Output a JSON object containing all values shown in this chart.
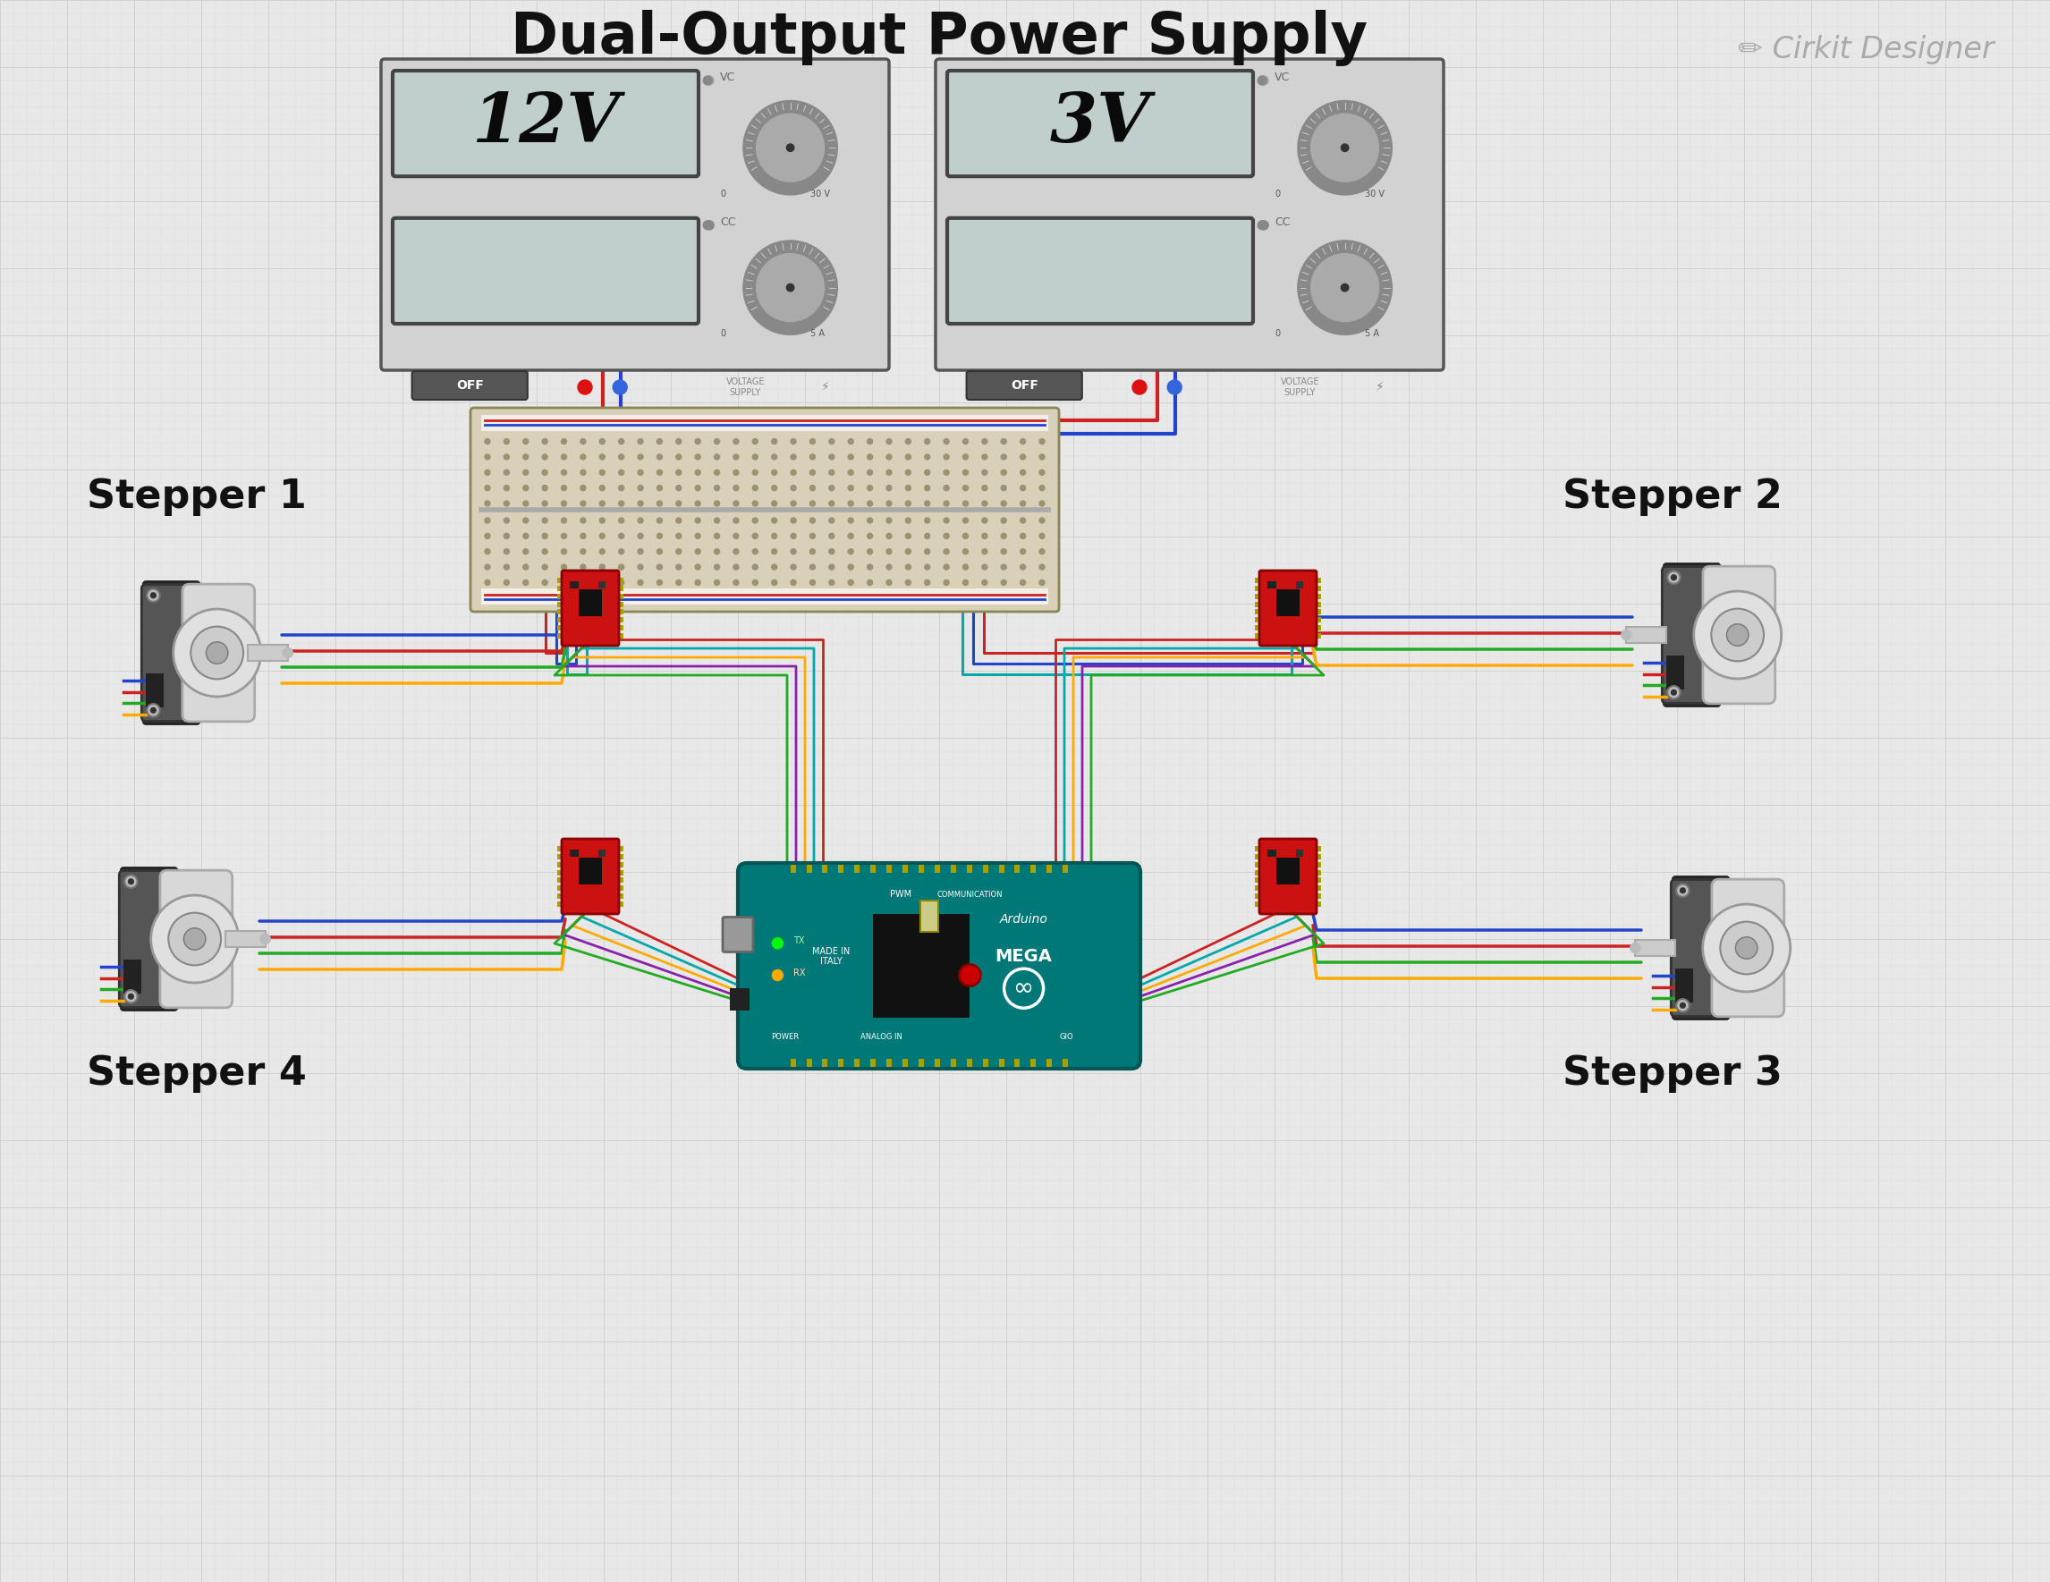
{
  "title": "Dual-Output Power Supply",
  "bg_color": "#e8e8e8",
  "grid_minor_color": "#d8d8d8",
  "grid_major_color": "#c8c8c8",
  "watermark": "Cirkit Designer",
  "watermark_color": "#aaaaaa",
  "stepper_labels": [
    "Stepper 1",
    "Stepper 2",
    "Stepper 3",
    "Stepper 4"
  ],
  "psu_bg": "#d2d2d2",
  "psu_border": "#555555",
  "display_bg": "#c0cece",
  "display_border": "#444444",
  "knob_outer": "#888888",
  "knob_inner": "#aaaaaa",
  "knob_tick": "#cccccc",
  "knob_dot": "#333333",
  "btn_color": "#555555",
  "led_red": "#dd1111",
  "led_blue": "#3366dd",
  "driver_red": "#cc1111",
  "driver_chip": "#111111",
  "breadboard_bg": "#c8c0a0",
  "breadboard_hole": "#aaa880",
  "breadboard_rail_red": "#cc2222",
  "breadboard_rail_blue": "#2222cc",
  "arduino_teal": "#007878",
  "arduino_dark": "#005555",
  "motor_front_light": "#cccccc",
  "motor_front_mid": "#aaaaaa",
  "motor_body_dark": "#444444",
  "motor_body_mid": "#666666",
  "motor_shaft": "#bbbbbb",
  "motor_bolt": "#888888",
  "wire_red": "#cc2222",
  "wire_blue": "#2244cc",
  "wire_cyan": "#00aaaa",
  "wire_green": "#22aa22",
  "wire_orange": "#ff8800",
  "wire_yellow": "#ddcc00",
  "wire_purple": "#8822aa"
}
